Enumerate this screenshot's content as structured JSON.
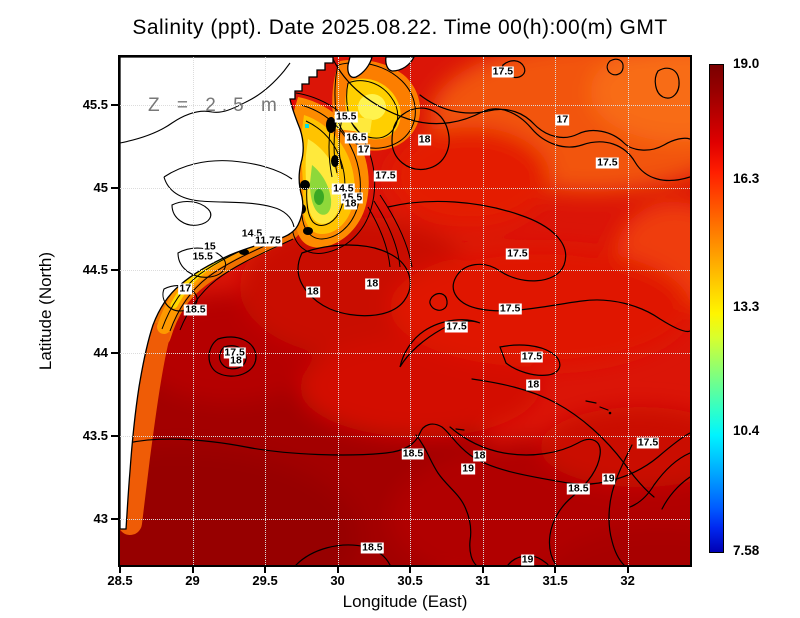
{
  "figure": {
    "title": "Salinity (ppt). Date 2025.08.22. Time 00(h):00(m) GMT",
    "depth_annotation": "Z = 2.5 m"
  },
  "colors": {
    "land": "#ffffff",
    "coastline": "#000000",
    "grid_dots": "#dcdcdc",
    "contour_line": "#000000",
    "colormap": "jet"
  },
  "chart_data": {
    "type": "heatmap",
    "subtype": "filled_contour_map",
    "title": "Salinity (ppt). Date 2025.08.22. Time 00(h):00(m) GMT",
    "field": "Salinity",
    "units": "ppt",
    "date": "2025.08.22",
    "time": "00(h):00(m) GMT",
    "depth_label": "Z = 2.5 m",
    "xlabel": "Longitude (East)",
    "ylabel": "Latitude (North)",
    "xlim": [
      28.5,
      32.43
    ],
    "ylim": [
      42.72,
      45.79
    ],
    "grid": "dotted",
    "x_ticks": [
      {
        "value": 28.5,
        "label": "28.5"
      },
      {
        "value": 29,
        "label": "29"
      },
      {
        "value": 29.5,
        "label": "29.5"
      },
      {
        "value": 30,
        "label": "30"
      },
      {
        "value": 30.5,
        "label": "30.5"
      },
      {
        "value": 31,
        "label": "31"
      },
      {
        "value": 31.5,
        "label": "31.5"
      },
      {
        "value": 32,
        "label": "32"
      }
    ],
    "y_ticks": [
      {
        "value": 45.5,
        "label": "45.5"
      },
      {
        "value": 45,
        "label": "45"
      },
      {
        "value": 44.5,
        "label": "44.5"
      },
      {
        "value": 44,
        "label": "44"
      },
      {
        "value": 43.5,
        "label": "43.5"
      },
      {
        "value": 43,
        "label": "43"
      }
    ],
    "colorbar": {
      "vmin": 7.58,
      "vmax": 19.0,
      "colormap": "jet",
      "ticks": [
        {
          "value": 19.0,
          "label": "19.0"
        },
        {
          "value": 16.3,
          "label": "16.3"
        },
        {
          "value": 13.3,
          "label": "13.3"
        },
        {
          "value": 10.4,
          "label": "10.4"
        },
        {
          "value": 7.58,
          "label": "7.58"
        }
      ]
    },
    "contour_labels": [
      {
        "text": "15.5",
        "lon": 30.06,
        "lat": 45.43
      },
      {
        "text": "16.5",
        "lon": 30.13,
        "lat": 45.3
      },
      {
        "text": "17",
        "lon": 30.18,
        "lat": 45.23
      },
      {
        "text": "17.5",
        "lon": 30.33,
        "lat": 45.07
      },
      {
        "text": "14.5",
        "lon": 30.04,
        "lat": 44.99
      },
      {
        "text": "15.5",
        "lon": 30.1,
        "lat": 44.94
      },
      {
        "text": "18",
        "lon": 30.09,
        "lat": 44.9
      },
      {
        "text": "14.5",
        "lon": 29.41,
        "lat": 44.72
      },
      {
        "text": "11.75",
        "lon": 29.52,
        "lat": 44.68
      },
      {
        "text": "15",
        "lon": 29.12,
        "lat": 44.64
      },
      {
        "text": "15.5",
        "lon": 29.07,
        "lat": 44.58
      },
      {
        "text": "17",
        "lon": 28.95,
        "lat": 44.39
      },
      {
        "text": "18.5",
        "lon": 29.02,
        "lat": 44.26
      },
      {
        "text": "17.5",
        "lon": 29.29,
        "lat": 44.0
      },
      {
        "text": "18",
        "lon": 29.3,
        "lat": 43.95
      },
      {
        "text": "18",
        "lon": 29.83,
        "lat": 44.37
      },
      {
        "text": "18",
        "lon": 30.24,
        "lat": 44.42
      },
      {
        "text": "17.5",
        "lon": 31.14,
        "lat": 45.7
      },
      {
        "text": "17",
        "lon": 31.55,
        "lat": 45.41
      },
      {
        "text": "18",
        "lon": 30.6,
        "lat": 45.29
      },
      {
        "text": "17.5",
        "lon": 31.86,
        "lat": 45.15
      },
      {
        "text": "17.5",
        "lon": 31.24,
        "lat": 44.6
      },
      {
        "text": "17.5",
        "lon": 31.19,
        "lat": 44.27
      },
      {
        "text": "17.5",
        "lon": 30.82,
        "lat": 44.16
      },
      {
        "text": "17.5",
        "lon": 31.34,
        "lat": 43.98
      },
      {
        "text": "18",
        "lon": 31.35,
        "lat": 43.81
      },
      {
        "text": "18.5",
        "lon": 30.52,
        "lat": 43.39
      },
      {
        "text": "18",
        "lon": 30.98,
        "lat": 43.38
      },
      {
        "text": "19",
        "lon": 30.9,
        "lat": 43.3
      },
      {
        "text": "17.5",
        "lon": 32.14,
        "lat": 43.46
      },
      {
        "text": "19",
        "lon": 31.87,
        "lat": 43.24
      },
      {
        "text": "18.5",
        "lon": 31.66,
        "lat": 43.18
      },
      {
        "text": "18.5",
        "lon": 30.24,
        "lat": 42.82
      },
      {
        "text": "19",
        "lon": 31.31,
        "lat": 42.75
      }
    ]
  }
}
